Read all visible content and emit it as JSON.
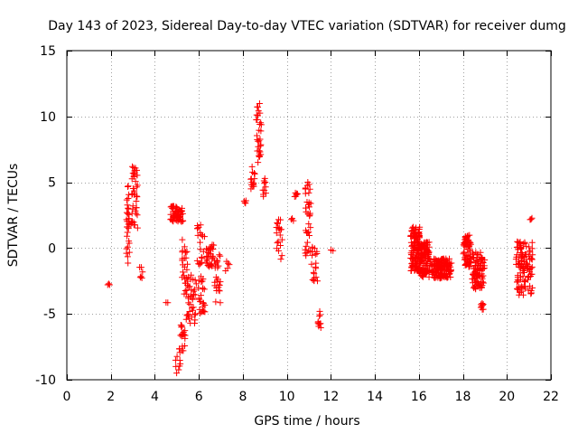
{
  "chart_data": {
    "type": "scatter",
    "title": "Day 143 of 2023, Sidereal Day-to-day VTEC variation (SDTVAR) for receiver dumg",
    "xlabel": "GPS time / hours",
    "ylabel": "SDTVAR / TECUs",
    "xlim": [
      0,
      22
    ],
    "ylim": [
      -10,
      15
    ],
    "xticks": [
      0,
      2,
      4,
      6,
      8,
      10,
      12,
      14,
      16,
      18,
      20,
      22
    ],
    "yticks": [
      -10,
      -5,
      0,
      5,
      10,
      15
    ],
    "grid": true,
    "marker": "plus",
    "color": "#ff0000",
    "clusters": [
      {
        "x": [
          1.85,
          1.95
        ],
        "y": [
          -2.8,
          -2.7
        ],
        "n": 3
      },
      {
        "x": [
          2.7,
          2.85
        ],
        "y": [
          -1.5,
          5.0
        ],
        "n": 30
      },
      {
        "x": [
          2.9,
          3.25
        ],
        "y": [
          1.5,
          6.3
        ],
        "n": 40
      },
      {
        "x": [
          3.3,
          3.45
        ],
        "y": [
          -2.3,
          -1.4
        ],
        "n": 6
      },
      {
        "x": [
          4.5,
          4.6
        ],
        "y": [
          -4.2,
          -4.1
        ],
        "n": 2
      },
      {
        "x": [
          4.7,
          5.3
        ],
        "y": [
          2.0,
          3.2
        ],
        "n": 60
      },
      {
        "x": [
          4.9,
          5.2
        ],
        "y": [
          -9.8,
          -8.2
        ],
        "n": 8
      },
      {
        "x": [
          5.1,
          5.4
        ],
        "y": [
          -8.0,
          -5.8
        ],
        "n": 20
      },
      {
        "x": [
          5.2,
          5.5
        ],
        "y": [
          -3.5,
          0.8
        ],
        "n": 25
      },
      {
        "x": [
          5.4,
          5.9
        ],
        "y": [
          -6.0,
          -2.0
        ],
        "n": 40
      },
      {
        "x": [
          5.9,
          6.3
        ],
        "y": [
          -5.0,
          1.8
        ],
        "n": 45
      },
      {
        "x": [
          6.3,
          6.7
        ],
        "y": [
          -1.5,
          0.3
        ],
        "n": 30
      },
      {
        "x": [
          6.7,
          7.0
        ],
        "y": [
          -4.2,
          -0.5
        ],
        "n": 25
      },
      {
        "x": [
          7.2,
          7.4
        ],
        "y": [
          -1.8,
          -1.0
        ],
        "n": 5
      },
      {
        "x": [
          8.05,
          8.15
        ],
        "y": [
          3.0,
          3.7
        ],
        "n": 4
      },
      {
        "x": [
          8.35,
          8.55
        ],
        "y": [
          4.5,
          6.3
        ],
        "n": 15
      },
      {
        "x": [
          8.6,
          8.85
        ],
        "y": [
          6.5,
          11.0
        ],
        "n": 30
      },
      {
        "x": [
          8.9,
          9.05
        ],
        "y": [
          3.7,
          5.3
        ],
        "n": 10
      },
      {
        "x": [
          9.5,
          9.8
        ],
        "y": [
          -1.0,
          2.5
        ],
        "n": 20
      },
      {
        "x": [
          10.2,
          10.3
        ],
        "y": [
          1.8,
          2.7
        ],
        "n": 3
      },
      {
        "x": [
          10.35,
          10.5
        ],
        "y": [
          3.9,
          4.4
        ],
        "n": 6
      },
      {
        "x": [
          10.8,
          11.1
        ],
        "y": [
          -0.8,
          5.4
        ],
        "n": 35
      },
      {
        "x": [
          11.1,
          11.4
        ],
        "y": [
          -2.6,
          0.4
        ],
        "n": 20
      },
      {
        "x": [
          11.4,
          11.55
        ],
        "y": [
          -6.3,
          -4.8
        ],
        "n": 10
      },
      {
        "x": [
          12.0,
          12.1
        ],
        "y": [
          -0.2,
          -0.1
        ],
        "n": 2
      },
      {
        "x": [
          15.6,
          16.1
        ],
        "y": [
          -1.8,
          1.6
        ],
        "n": 120
      },
      {
        "x": [
          16.0,
          16.5
        ],
        "y": [
          -2.2,
          0.5
        ],
        "n": 120
      },
      {
        "x": [
          16.5,
          17.5
        ],
        "y": [
          -2.3,
          -0.8
        ],
        "n": 150
      },
      {
        "x": [
          18.0,
          18.4
        ],
        "y": [
          -1.5,
          1.0
        ],
        "n": 60
      },
      {
        "x": [
          18.4,
          19.0
        ],
        "y": [
          -3.2,
          -0.3
        ],
        "n": 90
      },
      {
        "x": [
          18.8,
          18.95
        ],
        "y": [
          -4.7,
          -4.2
        ],
        "n": 8
      },
      {
        "x": [
          20.4,
          20.9
        ],
        "y": [
          -3.6,
          0.5
        ],
        "n": 80
      },
      {
        "x": [
          20.9,
          21.2
        ],
        "y": [
          -3.5,
          0.5
        ],
        "n": 35
      },
      {
        "x": [
          21.05,
          21.15
        ],
        "y": [
          2.1,
          2.6
        ],
        "n": 3
      }
    ]
  }
}
